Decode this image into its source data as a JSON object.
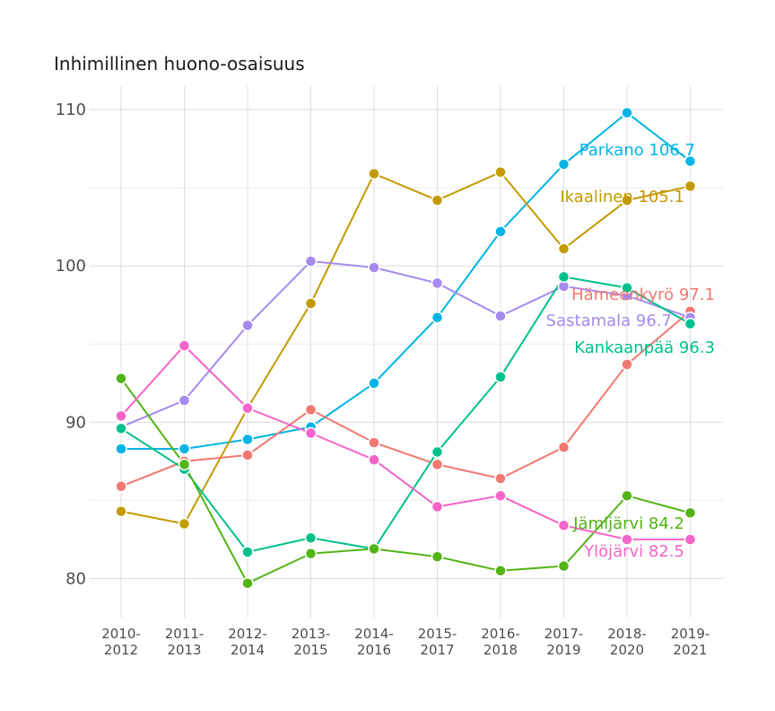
{
  "chart_data": {
    "type": "line",
    "title": "Inhimillinen huono-osaisuus",
    "xlabel": "",
    "ylabel": "",
    "ylim": [
      77.5,
      111.5
    ],
    "yticks": [
      80,
      90,
      100,
      110
    ],
    "grid": true,
    "legend": "none",
    "categories": [
      "2010-\n2012",
      "2011-\n2013",
      "2012-\n2014",
      "2013-\n2015",
      "2014-\n2016",
      "2015-\n2017",
      "2016-\n2018",
      "2017-\n2019",
      "2018-\n2020",
      "2019-\n2021"
    ],
    "series": [
      {
        "name": "Parkano",
        "label": "Parkano 106.7",
        "color": "#00B4E6",
        "values": [
          88.3,
          88.3,
          88.9,
          89.7,
          92.5,
          96.7,
          102.2,
          106.5,
          109.8,
          106.7
        ]
      },
      {
        "name": "Ikaalinen",
        "label": "Ikaalinen 105.1",
        "color": "#C49A00",
        "values": [
          84.3,
          83.5,
          90.9,
          97.6,
          105.9,
          104.2,
          106.0,
          101.1,
          104.2,
          105.1
        ]
      },
      {
        "name": "Hämeenkyrö",
        "label": "Hämeenkyrö 97.1",
        "color": "#F07870",
        "values": [
          85.9,
          87.5,
          87.9,
          90.8,
          88.7,
          87.3,
          86.4,
          88.4,
          93.7,
          97.1
        ]
      },
      {
        "name": "Sastamala",
        "label": "Sastamala 96.7",
        "color": "#A58AF0",
        "values": [
          89.7,
          91.4,
          96.2,
          100.3,
          99.9,
          98.9,
          96.8,
          98.7,
          98.1,
          96.7
        ]
      },
      {
        "name": "Kankaanpää",
        "label": "Kankaanpää 96.3",
        "color": "#00C08B",
        "values": [
          89.6,
          87.0,
          81.7,
          82.6,
          81.9,
          88.1,
          92.9,
          99.3,
          98.6,
          96.3
        ]
      },
      {
        "name": "Jämijärvi",
        "label": "Jämijärvi 84.2",
        "color": "#52B415",
        "values": [
          92.8,
          87.3,
          79.7,
          81.6,
          81.9,
          81.4,
          80.5,
          80.8,
          85.3,
          84.2
        ]
      },
      {
        "name": "Ylöjärvi",
        "label": "Ylöjärvi 82.5",
        "color": "#F564C8",
        "values": [
          90.4,
          94.9,
          90.9,
          89.3,
          87.6,
          84.6,
          85.3,
          83.4,
          82.5,
          82.5
        ]
      }
    ]
  }
}
